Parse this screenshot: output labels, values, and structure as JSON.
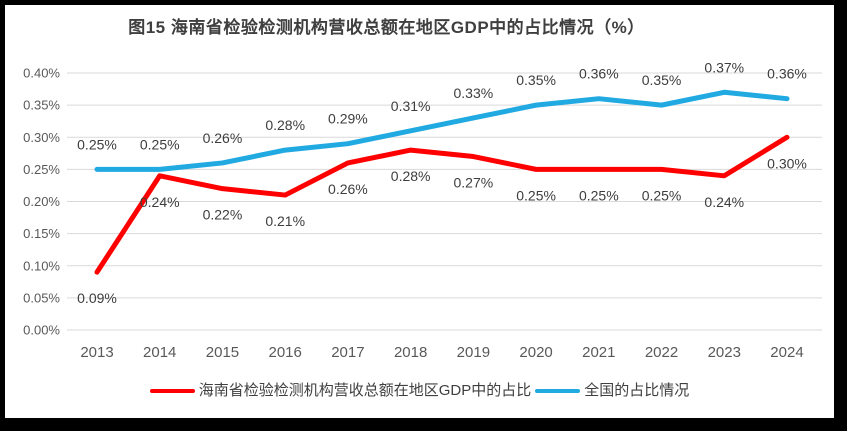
{
  "frame": {
    "background": "#000000",
    "panel_background": "#ffffff"
  },
  "colors": {
    "grid": "#d9d9d9",
    "tick_text": "#595959",
    "data_label": "#3d3d3d",
    "title": "#3f3f3f"
  },
  "chart_data": {
    "type": "line",
    "title": "图15 海南省检验检测机构营收总额在地区GDP中的占比情况（%）",
    "categories": [
      "2013",
      "2014",
      "2015",
      "2016",
      "2017",
      "2018",
      "2019",
      "2020",
      "2021",
      "2022",
      "2023",
      "2024"
    ],
    "series": [
      {
        "id": "hainan-gdp-share",
        "name": "海南省检验检测机构营收总额在地区GDP中的占比",
        "color": "#ff0000",
        "values": [
          0.09,
          0.24,
          0.22,
          0.21,
          0.26,
          0.28,
          0.27,
          0.25,
          0.25,
          0.25,
          0.24,
          0.3
        ],
        "labels": [
          "0.09%",
          "0.24%",
          "0.22%",
          "0.21%",
          "0.26%",
          "0.28%",
          "0.27%",
          "0.25%",
          "0.25%",
          "0.25%",
          "0.24%",
          "0.30%"
        ],
        "label_position": "below"
      },
      {
        "id": "national-share",
        "name": "全国的占比情况",
        "color": "#21a9e1",
        "values": [
          0.25,
          0.25,
          0.26,
          0.28,
          0.29,
          0.31,
          0.33,
          0.35,
          0.36,
          0.35,
          0.37,
          0.36
        ],
        "labels": [
          "0.25%",
          "0.25%",
          "0.26%",
          "0.28%",
          "0.29%",
          "0.31%",
          "0.33%",
          "0.35%",
          "0.36%",
          "0.35%",
          "0.37%",
          "0.36%"
        ],
        "label_position": "above"
      }
    ],
    "y_axis": {
      "min": 0,
      "max": 0.4,
      "step": 0.05,
      "ticks": [
        "0.40%",
        "0.35%",
        "0.30%",
        "0.25%",
        "0.20%",
        "0.15%",
        "0.10%",
        "0.05%",
        "0.00%"
      ]
    },
    "x_axis_label": "",
    "y_axis_label": "",
    "grid": true,
    "legend_position": "bottom"
  }
}
